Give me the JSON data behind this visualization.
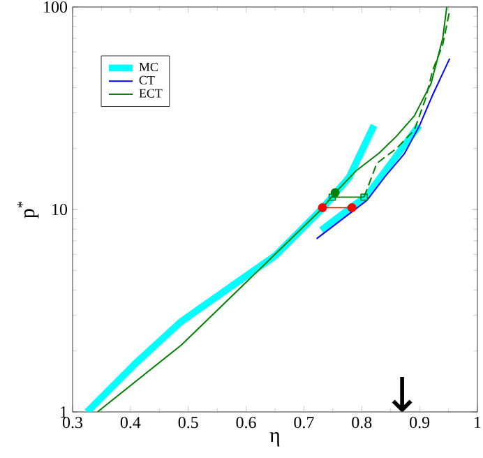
{
  "chart_data": {
    "type": "line",
    "xlabel": "η",
    "ylabel": "p$^{*}$",
    "log": "y",
    "xlim": [
      0.3,
      1
    ],
    "ylim": [
      1,
      100
    ],
    "xticks": [
      0.3,
      0.4,
      0.5,
      0.6,
      0.7,
      0.8,
      0.9,
      1
    ],
    "yticks": [
      1,
      10,
      100
    ],
    "legend": "top left",
    "grid": false,
    "series": [
      {
        "name": "MC",
        "color": "#00ffff",
        "x": [
          0.325,
          0.409,
          0.488,
          0.568,
          0.65,
          0.73,
          0.778,
          0.821
        ],
        "values": [
          1,
          1.74,
          2.8,
          4.05,
          5.9,
          10,
          14.4,
          26
        ]
      },
      {
        "color": "#00ffff",
        "x": [
          0.73,
          0.809,
          0.899
        ],
        "values": [
          7.9,
          11.7,
          26
        ]
      },
      {
        "name": "CT",
        "color": "#0000ff",
        "x": [
          0.722,
          0.809,
          0.84,
          0.874,
          0.9,
          0.923,
          0.94,
          0.952
        ],
        "values": [
          7.17,
          11.1,
          14.5,
          18.9,
          26,
          37,
          47,
          55.6
        ]
      },
      {
        "name": "ECT",
        "color": "#008000",
        "x": [
          0.343,
          0.488,
          0.73,
          0.754,
          0.79,
          0.83,
          0.86,
          0.891,
          0.92,
          0.94,
          0.947
        ],
        "values": [
          1,
          2.14,
          10,
          12.1,
          15.5,
          19,
          23,
          29,
          42,
          70,
          100
        ]
      },
      {
        "color": "#008000",
        "line_style": "dashed",
        "x": [
          0.804,
          0.826,
          0.86,
          0.891,
          0.91,
          0.923,
          0.94,
          0.952
        ],
        "values": [
          11.5,
          16.9,
          20,
          24.7,
          35,
          49,
          65,
          96
        ]
      },
      {
        "color": "#ff0000",
        "marker": "circle",
        "x": [
          0.732,
          0.783
        ],
        "values": [
          10.2,
          10.2
        ]
      },
      {
        "color": "#008000",
        "marker": "square",
        "x": [
          0.749,
          0.804
        ],
        "values": [
          11.5,
          11.5
        ]
      },
      {
        "type": "scatter",
        "color": "#008000",
        "marker": "circle",
        "x": [
          0.754
        ],
        "values": [
          12.1
        ]
      }
    ],
    "annotations": [
      "↓"
    ]
  }
}
